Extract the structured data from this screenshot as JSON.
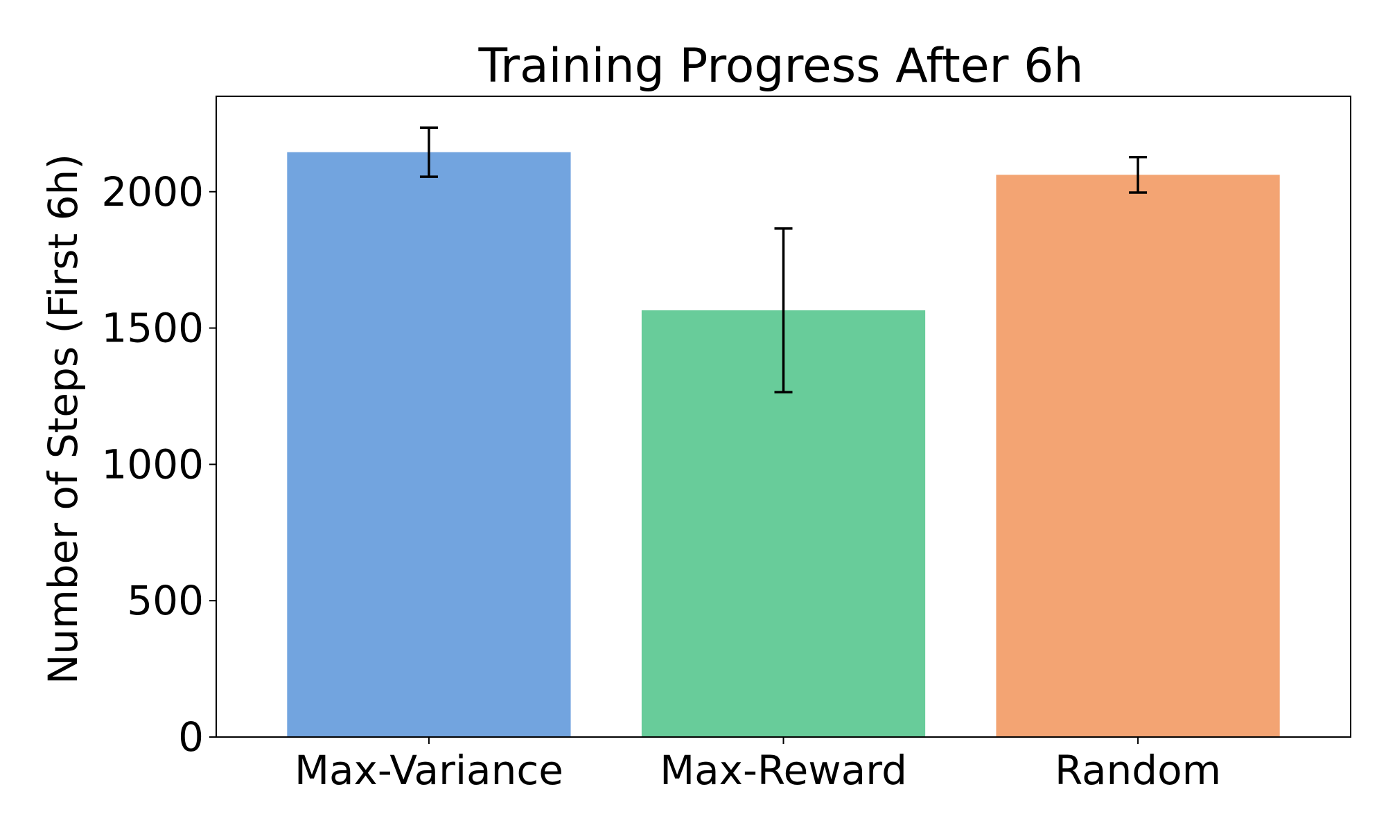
{
  "chart_data": {
    "type": "bar",
    "title": "Training Progress After 6h",
    "xlabel": "",
    "ylabel": "Number of Steps (First 6h)",
    "categories": [
      "Max-Variance",
      "Max-Reward",
      "Random"
    ],
    "values": [
      2145,
      1565,
      2062
    ],
    "error": [
      90,
      300,
      65
    ],
    "colors": [
      "#72a4df",
      "#68cc9a",
      "#f3a473"
    ],
    "ylim": [
      0,
      2350
    ],
    "yticks": [
      0,
      500,
      1000,
      1500,
      2000
    ],
    "grid": false,
    "legend": "none"
  }
}
